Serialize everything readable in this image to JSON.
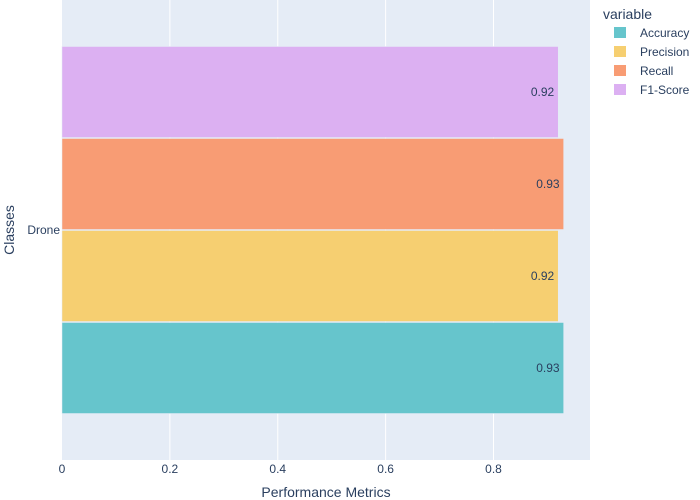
{
  "chart_data": {
    "type": "bar",
    "orientation": "horizontal",
    "barmode": "group",
    "categories": [
      "Drone"
    ],
    "series": [
      {
        "name": "Accuracy",
        "values": [
          0.93
        ],
        "labels": [
          "0.93"
        ],
        "color": "#66C5CC"
      },
      {
        "name": "Precision",
        "values": [
          0.92
        ],
        "labels": [
          "0.92"
        ],
        "color": "#F6CF71"
      },
      {
        "name": "Recall",
        "values": [
          0.93
        ],
        "labels": [
          "0.93"
        ],
        "color": "#F89C74"
      },
      {
        "name": "F1-Score",
        "values": [
          0.92
        ],
        "labels": [
          "0.92"
        ],
        "color": "#DCB0F2"
      }
    ],
    "xlabel": "Performance Metrics",
    "ylabel": "Classes",
    "xlim": [
      0,
      0.9789
    ],
    "xticks": [
      0,
      0.2,
      0.4,
      0.6,
      0.8
    ],
    "xtick_labels": [
      "0",
      "0.2",
      "0.4",
      "0.6",
      "0.8"
    ],
    "legend": {
      "title": "variable",
      "position": "top-right"
    },
    "grid": true,
    "plot_background": "#E5ECF6"
  }
}
